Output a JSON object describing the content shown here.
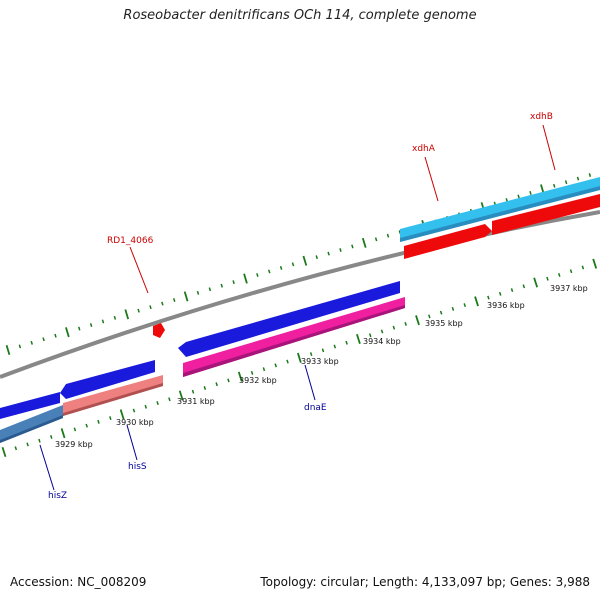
{
  "title": "Roseobacter denitrificans OCh 114, complete genome",
  "footer": {
    "accession": "Accession: NC_008209",
    "summary": "Topology: circular; Length: 4,133,097 bp; Genes: 3,988"
  },
  "kbp_labels": [
    "3929 kbp",
    "3930 kbp",
    "3931 kbp",
    "3932 kbp",
    "3933 kbp",
    "3934 kbp",
    "3935 kbp",
    "3936 kbp",
    "3937 kbp"
  ],
  "gene_labels": {
    "xdhB": "xdhB",
    "xdhA": "xdhA",
    "rd1_4066": "RD1_4066",
    "dnaE": "dnaE",
    "hisS": "hisS",
    "hisZ": "hisZ"
  },
  "colors": {
    "background": "#ffffff",
    "backbone": "#888888",
    "tick": "#1a7a1a",
    "blue_gene": "#1a1adc",
    "cyan_gene": "#33c0ef",
    "red_gene": "#ee0a0a",
    "magenta_gene": "#ef1fa0",
    "salmon_gene": "#ef8080",
    "steel_gene": "#4a80b8",
    "red_label": "#cc0000",
    "blue_label": "#000099"
  }
}
